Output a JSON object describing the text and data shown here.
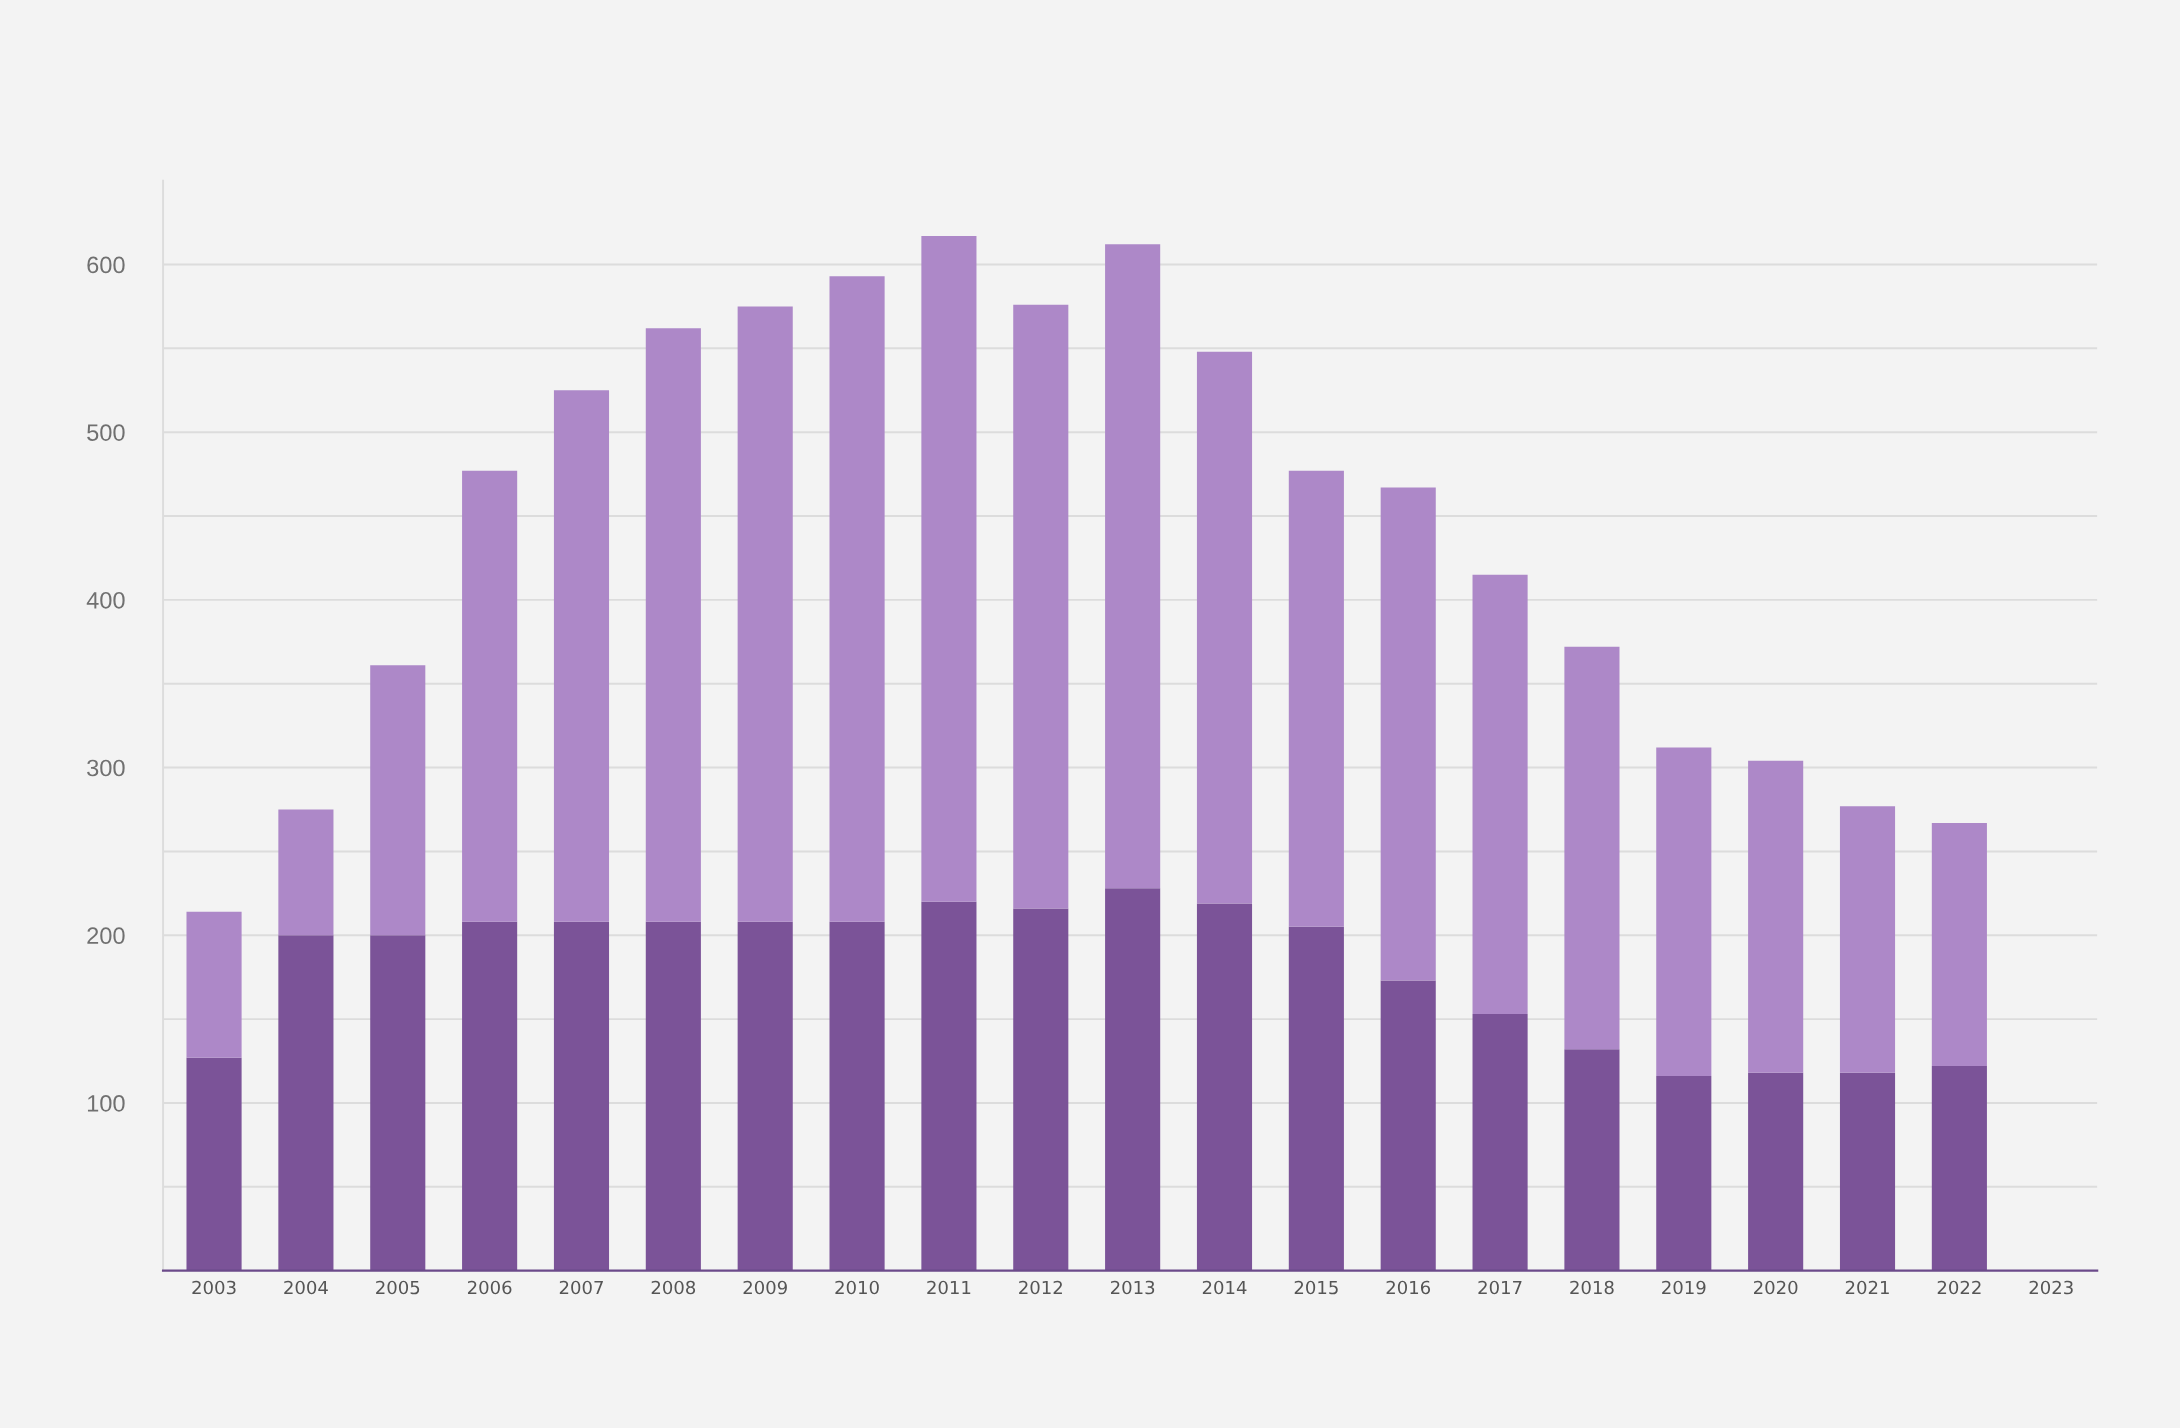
{
  "chart_data": {
    "type": "bar",
    "stacked": true,
    "categories": [
      "2003",
      "2004",
      "2005",
      "2006",
      "2007",
      "2008",
      "2009",
      "2010",
      "2011",
      "2012",
      "2013",
      "2014",
      "2015",
      "2016",
      "2017",
      "2018",
      "2019",
      "2020",
      "2021",
      "2022",
      "2023"
    ],
    "series": [
      {
        "color": "#7b5398",
        "values": [
          127,
          200,
          200,
          208,
          208,
          208,
          208,
          208,
          220,
          216,
          228,
          219,
          205,
          173,
          153,
          132,
          116,
          118,
          118,
          122,
          null
        ]
      },
      {
        "color": "#ad88c8",
        "values": [
          87,
          75,
          161,
          269,
          317,
          354,
          367,
          385,
          397,
          360,
          384,
          329,
          272,
          294,
          262,
          240,
          196,
          186,
          159,
          145,
          null
        ]
      }
    ],
    "ylim": [
      0,
      650
    ],
    "yticks": [
      {
        "value": 50,
        "label": null
      },
      100,
      {
        "value": 150,
        "label": null
      },
      200,
      {
        "value": 250,
        "label": null
      },
      300,
      {
        "value": 350,
        "label": null
      },
      400,
      {
        "value": 450,
        "label": null
      },
      500,
      {
        "value": 550,
        "label": null
      },
      600
    ],
    "grid": "y"
  }
}
